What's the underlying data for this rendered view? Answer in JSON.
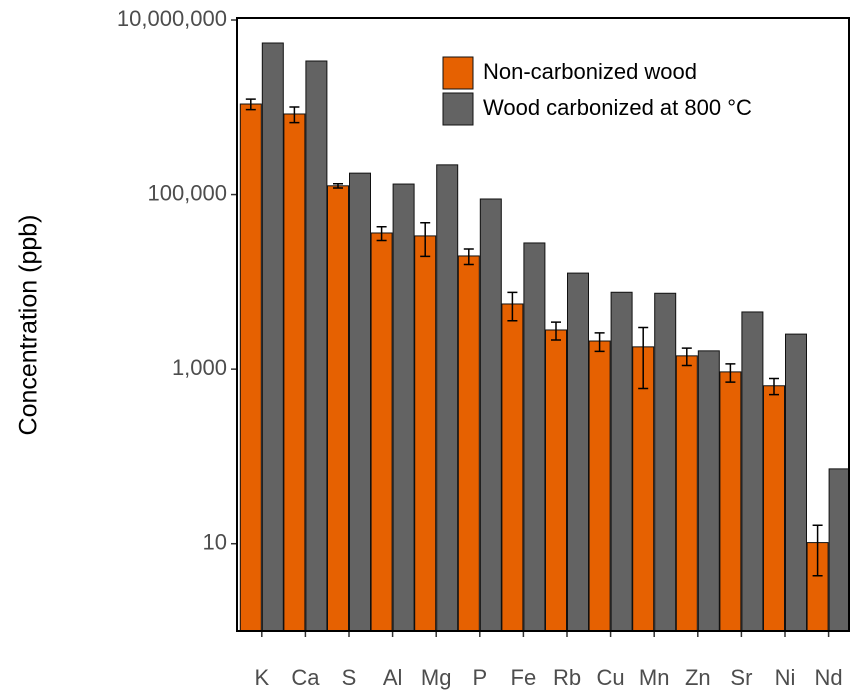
{
  "chart_data": {
    "type": "bar",
    "y_label": "Concentration (ppb)",
    "categories": [
      "K",
      "Ca",
      "S",
      "Al",
      "Mg",
      "P",
      "Fe",
      "Rb",
      "Cu",
      "Mn",
      "Zn",
      "Sr",
      "Ni",
      "Nd"
    ],
    "series": [
      {
        "name": "Non-carbonized wood",
        "color": "#e66101",
        "values": [
          1090000,
          838000,
          126000,
          36300,
          33600,
          19800,
          5580,
          2810,
          2100,
          1800,
          1420,
          930,
          645,
          10.3
        ],
        "errors": [
          150000,
          170000,
          7000,
          6500,
          14000,
          4000,
          2000,
          650,
          500,
          1200,
          320,
          220,
          135,
          6
        ]
      },
      {
        "name": "Wood carbonized at 800 °C",
        "color": "#636363",
        "values": [
          5450000,
          3390000,
          176000,
          132000,
          219000,
          89000,
          27900,
          12600,
          7600,
          7400,
          1620,
          4520,
          2520,
          72
        ]
      }
    ],
    "log_scale": true,
    "ylim": [
      1,
      10000000
    ],
    "yticks": [
      {
        "value": 10,
        "label": "10"
      },
      {
        "value": 1000,
        "label": "1,000"
      },
      {
        "value": 100000,
        "label": "100,000"
      },
      {
        "value": 10000000,
        "label": "10,000,000"
      }
    ],
    "legend": "top-right"
  }
}
